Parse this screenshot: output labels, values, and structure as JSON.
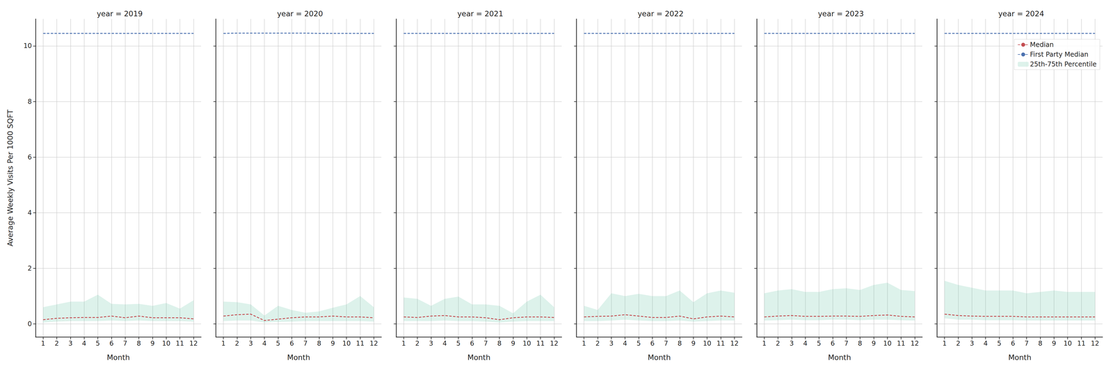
{
  "chart_data": [
    {
      "type": "line",
      "title": "year = 2019",
      "x_label": "Month",
      "y_label": "Average Weekly Visits Per 1000 SQFT",
      "x": [
        1,
        2,
        3,
        4,
        5,
        6,
        7,
        8,
        9,
        10,
        11,
        12
      ],
      "xlim": [
        0.45,
        12.55
      ],
      "xticks": [
        1,
        2,
        3,
        4,
        5,
        6,
        7,
        8,
        9,
        10,
        11,
        12
      ],
      "ylim": [
        -0.47,
        10.97
      ],
      "yticks": [
        0,
        2,
        4,
        6,
        8,
        10
      ],
      "grid": true,
      "series": [
        {
          "name": "Median",
          "color": "#c44e52",
          "line_style": "dashed",
          "values": [
            0.15,
            0.2,
            0.22,
            0.23,
            0.23,
            0.28,
            0.22,
            0.28,
            0.22,
            0.22,
            0.22,
            0.18
          ]
        },
        {
          "name": "First Party Median",
          "color": "#4c72b0",
          "line_style": "dashed",
          "values": [
            10.45,
            10.45,
            10.45,
            10.45,
            10.45,
            10.45,
            10.45,
            10.45,
            10.45,
            10.45,
            10.45,
            10.45
          ]
        },
        {
          "name": "25th-75th Percentile",
          "type": "band",
          "color": "#66c2a5",
          "lower": [
            0.05,
            0.08,
            0.1,
            0.1,
            0.1,
            0.12,
            0.1,
            0.12,
            0.1,
            0.1,
            0.1,
            0.08
          ],
          "upper": [
            0.6,
            0.7,
            0.8,
            0.8,
            1.05,
            0.72,
            0.7,
            0.72,
            0.65,
            0.75,
            0.55,
            0.85
          ]
        }
      ]
    },
    {
      "type": "line",
      "title": "year = 2020",
      "x_label": "Month",
      "tick_labels": "x",
      "x": [
        1,
        2,
        3,
        4,
        5,
        6,
        7,
        8,
        9,
        10,
        11,
        12
      ],
      "xlim": [
        0.45,
        12.55
      ],
      "xticks": [
        1,
        2,
        3,
        4,
        5,
        6,
        7,
        8,
        9,
        10,
        11,
        12
      ],
      "ylim": [
        -0.47,
        10.97
      ],
      "yticks": [
        0,
        2,
        4,
        6,
        8,
        10
      ],
      "grid": true,
      "series": [
        {
          "name": "Median",
          "color": "#c44e52",
          "line_style": "dashed",
          "values": [
            0.28,
            0.33,
            0.35,
            0.12,
            0.17,
            0.22,
            0.25,
            0.25,
            0.28,
            0.25,
            0.25,
            0.22
          ]
        },
        {
          "name": "First Party Median",
          "color": "#4c72b0",
          "line_style": "dashed",
          "values": [
            10.45,
            10.46,
            10.46,
            10.46,
            10.46,
            10.46,
            10.46,
            10.45,
            10.45,
            10.45,
            10.45,
            10.45
          ]
        },
        {
          "name": "25th-75th Percentile",
          "type": "band",
          "color": "#66c2a5",
          "lower": [
            0.1,
            0.12,
            0.12,
            0.05,
            0.07,
            0.08,
            0.1,
            0.1,
            0.1,
            0.1,
            0.1,
            0.08
          ],
          "upper": [
            0.8,
            0.78,
            0.7,
            0.3,
            0.65,
            0.5,
            0.4,
            0.45,
            0.58,
            0.7,
            1.0,
            0.6
          ]
        }
      ]
    },
    {
      "type": "line",
      "title": "year = 2021",
      "x_label": "Month",
      "tick_labels": "x",
      "x": [
        1,
        2,
        3,
        4,
        5,
        6,
        7,
        8,
        9,
        10,
        11,
        12
      ],
      "xlim": [
        0.45,
        12.55
      ],
      "xticks": [
        1,
        2,
        3,
        4,
        5,
        6,
        7,
        8,
        9,
        10,
        11,
        12
      ],
      "ylim": [
        -0.47,
        10.97
      ],
      "yticks": [
        0,
        2,
        4,
        6,
        8,
        10
      ],
      "grid": true,
      "series": [
        {
          "name": "Median",
          "color": "#c44e52",
          "line_style": "dashed",
          "values": [
            0.25,
            0.23,
            0.28,
            0.3,
            0.25,
            0.25,
            0.22,
            0.15,
            0.22,
            0.25,
            0.25,
            0.23
          ]
        },
        {
          "name": "First Party Median",
          "color": "#4c72b0",
          "line_style": "dashed",
          "values": [
            10.45,
            10.45,
            10.45,
            10.45,
            10.45,
            10.45,
            10.45,
            10.45,
            10.45,
            10.45,
            10.45,
            10.45
          ]
        },
        {
          "name": "25th-75th Percentile",
          "type": "band",
          "color": "#66c2a5",
          "lower": [
            0.1,
            0.1,
            0.1,
            0.12,
            0.1,
            0.1,
            0.08,
            0.05,
            0.08,
            0.1,
            0.1,
            0.1
          ],
          "upper": [
            0.95,
            0.9,
            0.65,
            0.9,
            0.98,
            0.7,
            0.7,
            0.65,
            0.38,
            0.8,
            1.05,
            0.6
          ]
        }
      ]
    },
    {
      "type": "line",
      "title": "year = 2022",
      "x_label": "Month",
      "tick_labels": "x",
      "x": [
        1,
        2,
        3,
        4,
        5,
        6,
        7,
        8,
        9,
        10,
        11,
        12
      ],
      "xlim": [
        0.45,
        12.55
      ],
      "xticks": [
        1,
        2,
        3,
        4,
        5,
        6,
        7,
        8,
        9,
        10,
        11,
        12
      ],
      "ylim": [
        -0.47,
        10.97
      ],
      "yticks": [
        0,
        2,
        4,
        6,
        8,
        10
      ],
      "grid": true,
      "series": [
        {
          "name": "Median",
          "color": "#c44e52",
          "line_style": "dashed",
          "values": [
            0.25,
            0.27,
            0.28,
            0.33,
            0.28,
            0.23,
            0.23,
            0.28,
            0.18,
            0.25,
            0.28,
            0.25
          ]
        },
        {
          "name": "First Party Median",
          "color": "#4c72b0",
          "line_style": "dashed",
          "values": [
            10.45,
            10.45,
            10.45,
            10.45,
            10.45,
            10.45,
            10.45,
            10.45,
            10.45,
            10.45,
            10.45,
            10.45
          ]
        },
        {
          "name": "25th-75th Percentile",
          "type": "band",
          "color": "#66c2a5",
          "lower": [
            0.1,
            0.1,
            0.12,
            0.15,
            0.12,
            0.1,
            0.1,
            0.12,
            0.08,
            0.1,
            0.12,
            0.12
          ],
          "upper": [
            0.65,
            0.5,
            1.1,
            1.0,
            1.08,
            1.0,
            1.0,
            1.2,
            0.78,
            1.1,
            1.2,
            1.12
          ]
        }
      ]
    },
    {
      "type": "line",
      "title": "year = 2023",
      "x_label": "Month",
      "tick_labels": "x",
      "x": [
        1,
        2,
        3,
        4,
        5,
        6,
        7,
        8,
        9,
        10,
        11,
        12
      ],
      "xlim": [
        0.45,
        12.55
      ],
      "xticks": [
        1,
        2,
        3,
        4,
        5,
        6,
        7,
        8,
        9,
        10,
        11,
        12
      ],
      "ylim": [
        -0.47,
        10.97
      ],
      "yticks": [
        0,
        2,
        4,
        6,
        8,
        10
      ],
      "grid": true,
      "series": [
        {
          "name": "Median",
          "color": "#c44e52",
          "line_style": "dashed",
          "values": [
            0.25,
            0.28,
            0.3,
            0.27,
            0.27,
            0.28,
            0.28,
            0.27,
            0.3,
            0.32,
            0.27,
            0.25
          ]
        },
        {
          "name": "First Party Median",
          "color": "#4c72b0",
          "line_style": "dashed",
          "values": [
            10.45,
            10.45,
            10.45,
            10.45,
            10.45,
            10.45,
            10.45,
            10.45,
            10.45,
            10.45,
            10.45,
            10.45
          ]
        },
        {
          "name": "25th-75th Percentile",
          "type": "band",
          "color": "#66c2a5",
          "lower": [
            0.12,
            0.13,
            0.15,
            0.13,
            0.13,
            0.15,
            0.15,
            0.13,
            0.15,
            0.15,
            0.13,
            0.12
          ],
          "upper": [
            1.1,
            1.2,
            1.25,
            1.15,
            1.15,
            1.25,
            1.28,
            1.22,
            1.4,
            1.48,
            1.22,
            1.18
          ]
        }
      ]
    },
    {
      "type": "line",
      "title": "year = 2024",
      "x_label": "Month",
      "tick_labels": "x",
      "legend": "upper right",
      "x": [
        1,
        2,
        3,
        4,
        5,
        6,
        7,
        8,
        9,
        10,
        11,
        12
      ],
      "xlim": [
        0.45,
        12.55
      ],
      "xticks": [
        1,
        2,
        3,
        4,
        5,
        6,
        7,
        8,
        9,
        10,
        11,
        12
      ],
      "ylim": [
        -0.47,
        10.97
      ],
      "yticks": [
        0,
        2,
        4,
        6,
        8,
        10
      ],
      "grid": true,
      "series": [
        {
          "name": "Median",
          "color": "#c44e52",
          "line_style": "dashed",
          "values": [
            0.35,
            0.3,
            0.28,
            0.27,
            0.27,
            0.27,
            0.25,
            0.25,
            0.25,
            0.25,
            0.25,
            0.25
          ]
        },
        {
          "name": "First Party Median",
          "color": "#4c72b0",
          "line_style": "dashed",
          "values": [
            10.45,
            10.45,
            10.45,
            10.45,
            10.45,
            10.45,
            10.45,
            10.45,
            10.45,
            10.45,
            10.45,
            10.45
          ]
        },
        {
          "name": "25th-75th Percentile",
          "type": "band",
          "color": "#66c2a5",
          "lower": [
            0.2,
            0.15,
            0.15,
            0.13,
            0.13,
            0.13,
            0.12,
            0.12,
            0.12,
            0.12,
            0.12,
            0.12
          ],
          "upper": [
            1.55,
            1.4,
            1.3,
            1.2,
            1.2,
            1.2,
            1.1,
            1.15,
            1.2,
            1.15,
            1.15,
            1.15
          ]
        }
      ]
    }
  ]
}
